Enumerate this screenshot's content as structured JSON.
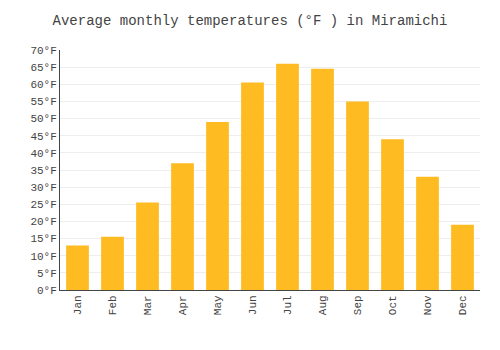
{
  "chart_data": {
    "type": "bar",
    "title": "Average monthly temperatures (°F ) in Miramichi",
    "categories": [
      "Jan",
      "Feb",
      "Mar",
      "Apr",
      "May",
      "Jun",
      "Jul",
      "Aug",
      "Sep",
      "Oct",
      "Nov",
      "Dec"
    ],
    "values": [
      13,
      15.5,
      25.5,
      37,
      49,
      60.5,
      66,
      64.5,
      55,
      44,
      33,
      19
    ],
    "color": "#FFBB22",
    "ylim": [
      0,
      70
    ],
    "yticks": [
      {
        "value": 0,
        "label": "0°F"
      },
      {
        "value": 5,
        "label": "5°F"
      },
      {
        "value": 10,
        "label": "10°F"
      },
      {
        "value": 15,
        "label": "15°F"
      },
      {
        "value": 20,
        "label": "20°F"
      },
      {
        "value": 25,
        "label": "25°F"
      },
      {
        "value": 30,
        "label": "30°F"
      },
      {
        "value": 35,
        "label": "35°F"
      },
      {
        "value": 40,
        "label": "40°F"
      },
      {
        "value": 45,
        "label": "45°F"
      },
      {
        "value": 50,
        "label": "50°F"
      },
      {
        "value": 55,
        "label": "55°F"
      },
      {
        "value": 60,
        "label": "60°F"
      },
      {
        "value": 65,
        "label": "65°F"
      },
      {
        "value": 70,
        "label": "70°F"
      }
    ],
    "grid": true
  }
}
